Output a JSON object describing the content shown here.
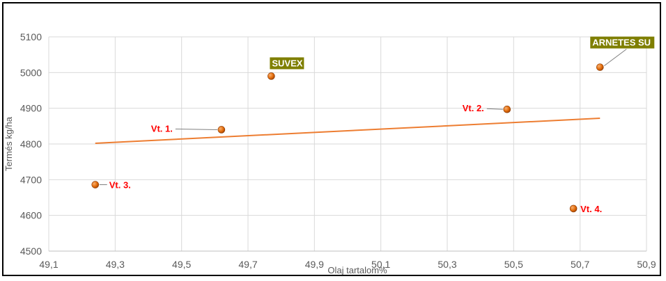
{
  "chart_data": {
    "type": "scatter",
    "title": "",
    "xlabel": "Olaj tartalom%",
    "ylabel": "Termés kg/ha",
    "xlim": [
      49.1,
      50.9
    ],
    "ylim": [
      4500,
      5100
    ],
    "x_ticks": [
      "49,1",
      "49,3",
      "49,5",
      "49,7",
      "49,9",
      "50,1",
      "50,3",
      "50,5",
      "50,7",
      "50,9"
    ],
    "y_ticks": [
      "4500",
      "4600",
      "4700",
      "4800",
      "4900",
      "5000",
      "5100"
    ],
    "grid": true,
    "legend": "none",
    "points": [
      {
        "label": "Vt. 1.",
        "x": 49.62,
        "y": 4840,
        "style": "red"
      },
      {
        "label": "SUVEX",
        "x": 49.77,
        "y": 4990,
        "style": "box"
      },
      {
        "label": "Vt. 2.",
        "x": 50.48,
        "y": 4897,
        "style": "red"
      },
      {
        "label": "ARNETES SU",
        "x": 50.76,
        "y": 5015,
        "style": "box"
      },
      {
        "label": "Vt. 3.",
        "x": 49.24,
        "y": 4686,
        "style": "red"
      },
      {
        "label": "Vt. 4.",
        "x": 50.68,
        "y": 4619,
        "style": "red"
      }
    ],
    "trendline": {
      "x": [
        49.24,
        50.76
      ],
      "y": [
        4802,
        4872
      ]
    },
    "colors": {
      "point": "#e36c0a",
      "trendline": "#ed7d31",
      "red_label": "#ff0000",
      "box_label_bg": "#7f7f00",
      "box_label_text": "#ffffff",
      "grid": "#d9d9d9"
    }
  }
}
